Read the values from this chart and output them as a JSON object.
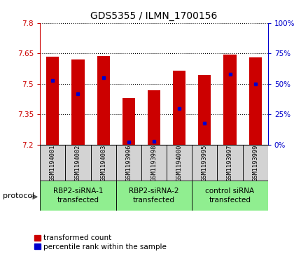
{
  "title": "GDS5355 / ILMN_1700156",
  "samples": [
    "GSM1194001",
    "GSM1194002",
    "GSM1194003",
    "GSM1193996",
    "GSM1193998",
    "GSM1194000",
    "GSM1193995",
    "GSM1193997",
    "GSM1193999"
  ],
  "transformed_count": [
    7.635,
    7.62,
    7.637,
    7.43,
    7.47,
    7.565,
    7.545,
    7.645,
    7.63
  ],
  "percentile_rank": [
    53,
    42,
    55,
    2,
    3,
    30,
    18,
    58,
    50
  ],
  "ymin": 7.2,
  "ymax": 7.8,
  "yticks": [
    7.2,
    7.35,
    7.5,
    7.65,
    7.8
  ],
  "y2min": 0,
  "y2max": 100,
  "y2ticks": [
    0,
    25,
    50,
    75,
    100
  ],
  "groups": [
    {
      "label": "RBP2-siRNA-1\ntransfected",
      "indices": [
        0,
        1,
        2
      ],
      "color": "#90ee90"
    },
    {
      "label": "RBP2-siRNA-2\ntransfected",
      "indices": [
        3,
        4,
        5
      ],
      "color": "#90ee90"
    },
    {
      "label": "control siRNA\ntransfected",
      "indices": [
        6,
        7,
        8
      ],
      "color": "#90ee90"
    }
  ],
  "bar_color": "#cc0000",
  "percentile_color": "#0000cc",
  "bar_width": 0.5,
  "base_value": 7.2,
  "title_fontsize": 10,
  "tick_fontsize": 7.5,
  "label_fontsize": 8,
  "group_label_fontsize": 7.5,
  "legend_fontsize": 7.5,
  "protocol_label": "protocol",
  "grid_color": "#000000",
  "sample_box_color": "#d3d3d3",
  "background_color": "#ffffff"
}
